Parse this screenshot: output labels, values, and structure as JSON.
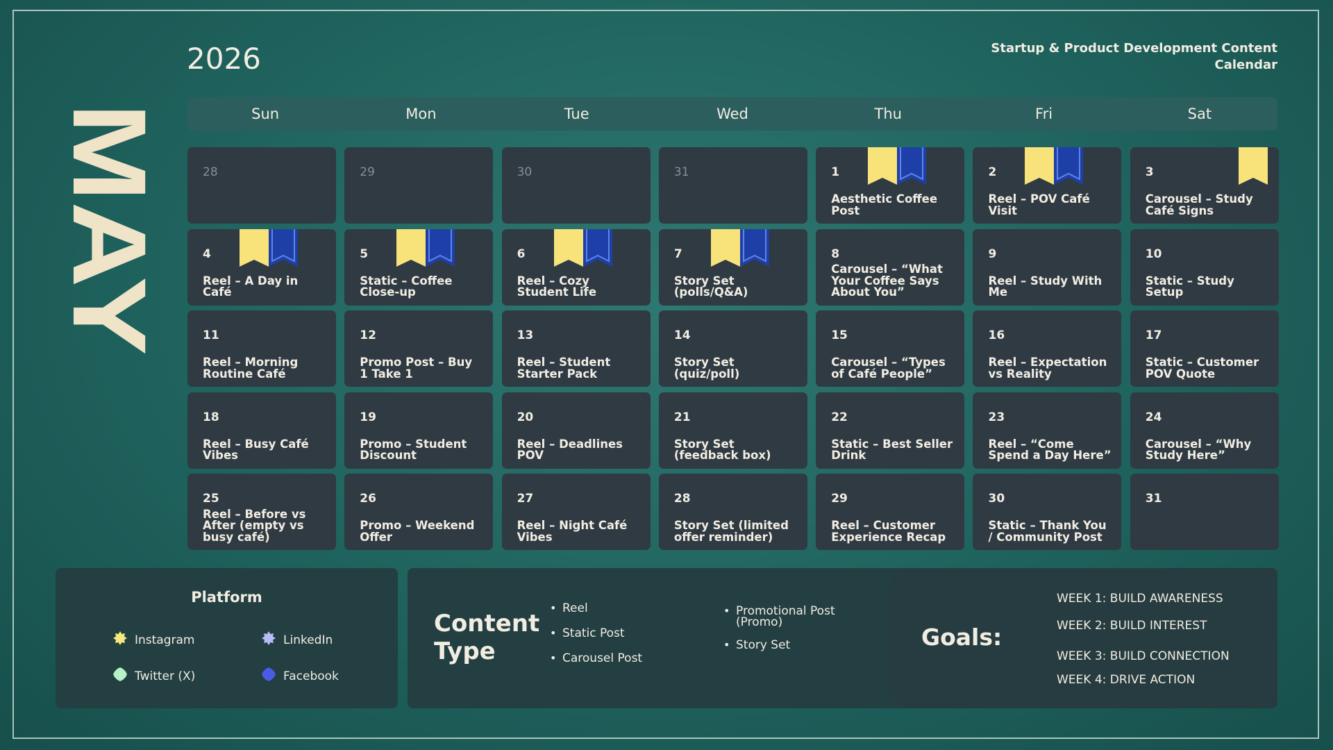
{
  "year": "2026",
  "subtitle": "Startup & Product Development Content Calendar",
  "month": "MAY",
  "colors": {
    "instagram": "#f6e87e",
    "linkedin": "#b6bcf5",
    "twitter": "#b7f1c6",
    "facebook": "#4a5be8",
    "ribbon_yellow": "#f8e27a",
    "ribbon_blue": "#1f3fa8"
  },
  "days_of_week": [
    "Sun",
    "Mon",
    "Tue",
    "Wed",
    "Thu",
    "Fri",
    "Sat"
  ],
  "cells": [
    {
      "day": "28",
      "content": "",
      "dim": true,
      "ribbons": ""
    },
    {
      "day": "29",
      "content": "",
      "dim": true,
      "ribbons": ""
    },
    {
      "day": "30",
      "content": "",
      "dim": true,
      "ribbons": ""
    },
    {
      "day": "31",
      "content": "",
      "dim": true,
      "ribbons": ""
    },
    {
      "day": "1",
      "content": "Aesthetic Coffee Post",
      "ribbons": "yb"
    },
    {
      "day": "2",
      "content": "Reel – POV Café Visit",
      "ribbons": "yb"
    },
    {
      "day": "3",
      "content": "Carousel – Study Café Signs",
      "ribbons": "y"
    },
    {
      "day": "4",
      "content": "Reel – A Day in Café",
      "ribbons": "yb"
    },
    {
      "day": "5",
      "content": "Static – Coffee Close-up",
      "ribbons": "yb"
    },
    {
      "day": "6",
      "content": "Reel – Cozy Student Life",
      "ribbons": "yb"
    },
    {
      "day": "7",
      "content": "Story Set (polls/Q&A)",
      "ribbons": "yb"
    },
    {
      "day": "8",
      "content": "Carousel – “What Your Coffee Says About You”",
      "ribbons": ""
    },
    {
      "day": "9",
      "content": "Reel – Study With Me",
      "ribbons": ""
    },
    {
      "day": "10",
      "content": "Static – Study Setup",
      "ribbons": ""
    },
    {
      "day": "11",
      "content": "Reel – Morning Routine Café",
      "ribbons": ""
    },
    {
      "day": "12",
      "content": "Promo Post – Buy 1 Take 1",
      "ribbons": ""
    },
    {
      "day": "13",
      "content": "Reel – Student Starter Pack",
      "ribbons": ""
    },
    {
      "day": "14",
      "content": "Story Set (quiz/poll)",
      "ribbons": ""
    },
    {
      "day": "15",
      "content": "Carousel – “Types of Café People”",
      "ribbons": ""
    },
    {
      "day": "16",
      "content": "Reel – Expectation vs Reality",
      "ribbons": ""
    },
    {
      "day": "17",
      "content": "Static – Customer POV Quote",
      "ribbons": ""
    },
    {
      "day": "18",
      "content": "Reel – Busy Café Vibes",
      "ribbons": ""
    },
    {
      "day": "19",
      "content": "Promo – Student Discount",
      "ribbons": ""
    },
    {
      "day": "20",
      "content": "Reel – Deadlines POV",
      "ribbons": ""
    },
    {
      "day": "21",
      "content": "Story Set (feedback box)",
      "ribbons": ""
    },
    {
      "day": "22",
      "content": "Static – Best Seller Drink",
      "ribbons": ""
    },
    {
      "day": "23",
      "content": "Reel – “Come Spend a Day Here”",
      "ribbons": ""
    },
    {
      "day": "24",
      "content": "Carousel – “Why Study Here”",
      "ribbons": ""
    },
    {
      "day": "25",
      "content": "Reel – Before vs After (empty vs busy café)",
      "ribbons": ""
    },
    {
      "day": "26",
      "content": "Promo – Weekend Offer",
      "ribbons": ""
    },
    {
      "day": "27",
      "content": "Reel – Night Café Vibes",
      "ribbons": ""
    },
    {
      "day": "28",
      "content": "Story Set (limited offer reminder)",
      "ribbons": ""
    },
    {
      "day": "29",
      "content": "Reel – Customer Experience Recap",
      "ribbons": ""
    },
    {
      "day": "30",
      "content": "Static – Thank You / Community Post",
      "ribbons": ""
    },
    {
      "day": "31",
      "content": "",
      "ribbons": ""
    }
  ],
  "platform": {
    "title": "Platform",
    "items": [
      {
        "name": "Instagram",
        "color": "#f6e87e",
        "icon": "instagram-icon"
      },
      {
        "name": "LinkedIn",
        "color": "#b6bcf5",
        "icon": "linkedin-icon"
      },
      {
        "name": "Twitter (X)",
        "color": "#b7f1c6",
        "icon": "twitter-icon"
      },
      {
        "name": "Facebook",
        "color": "#4a5be8",
        "icon": "facebook-icon"
      }
    ]
  },
  "content_type": {
    "title_line1": "Content",
    "title_line2": "Type",
    "col1": [
      "Reel",
      "Static Post",
      "Carousel Post"
    ],
    "col2": [
      "Promotional Post (Promo)",
      "Story Set"
    ]
  },
  "goals": {
    "title": "Goals:",
    "items": [
      "WEEK 1: BUILD AWARENESS",
      "WEEK 2: BUILD INTEREST",
      "WEEK 3: BUILD CONNECTION",
      "WEEK 4: DRIVE ACTION"
    ]
  }
}
